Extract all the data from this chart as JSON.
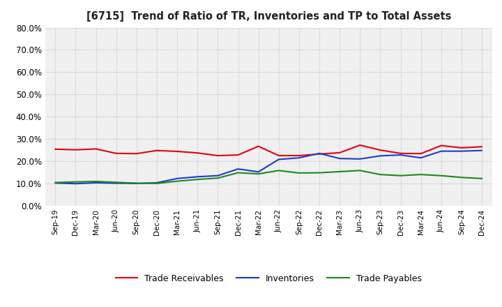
{
  "title": "[6715]  Trend of Ratio of TR, Inventories and TP to Total Assets",
  "x_labels": [
    "Sep-19",
    "Dec-19",
    "Mar-20",
    "Jun-20",
    "Sep-20",
    "Dec-20",
    "Mar-21",
    "Jun-21",
    "Sep-21",
    "Dec-21",
    "Mar-22",
    "Jun-22",
    "Sep-22",
    "Dec-22",
    "Mar-23",
    "Jun-23",
    "Sep-23",
    "Dec-23",
    "Mar-24",
    "Jun-24",
    "Sep-24",
    "Dec-24"
  ],
  "trade_receivables": [
    0.254,
    0.251,
    0.255,
    0.235,
    0.234,
    0.248,
    0.244,
    0.237,
    0.225,
    0.228,
    0.267,
    0.225,
    0.225,
    0.232,
    0.238,
    0.272,
    0.25,
    0.235,
    0.234,
    0.27,
    0.26,
    0.265
  ],
  "inventories": [
    0.102,
    0.099,
    0.103,
    0.101,
    0.1,
    0.103,
    0.122,
    0.13,
    0.135,
    0.165,
    0.152,
    0.208,
    0.215,
    0.235,
    0.212,
    0.21,
    0.224,
    0.228,
    0.215,
    0.245,
    0.245,
    0.248
  ],
  "trade_payables": [
    0.104,
    0.107,
    0.109,
    0.105,
    0.101,
    0.1,
    0.11,
    0.118,
    0.124,
    0.148,
    0.143,
    0.158,
    0.147,
    0.148,
    0.153,
    0.158,
    0.14,
    0.135,
    0.14,
    0.135,
    0.127,
    0.122
  ],
  "ylim": [
    0.0,
    0.8
  ],
  "yticks": [
    0.0,
    0.1,
    0.2,
    0.3,
    0.4,
    0.5,
    0.6,
    0.7,
    0.8
  ],
  "line_colors": {
    "trade_receivables": "#e8000d",
    "inventories": "#1c3bcc",
    "trade_payables": "#1a8a1a"
  },
  "legend_labels": [
    "Trade Receivables",
    "Inventories",
    "Trade Payables"
  ],
  "background_color": "#ffffff",
  "plot_bg_color": "#f0f0f0",
  "grid_color": "#bbbbbb"
}
